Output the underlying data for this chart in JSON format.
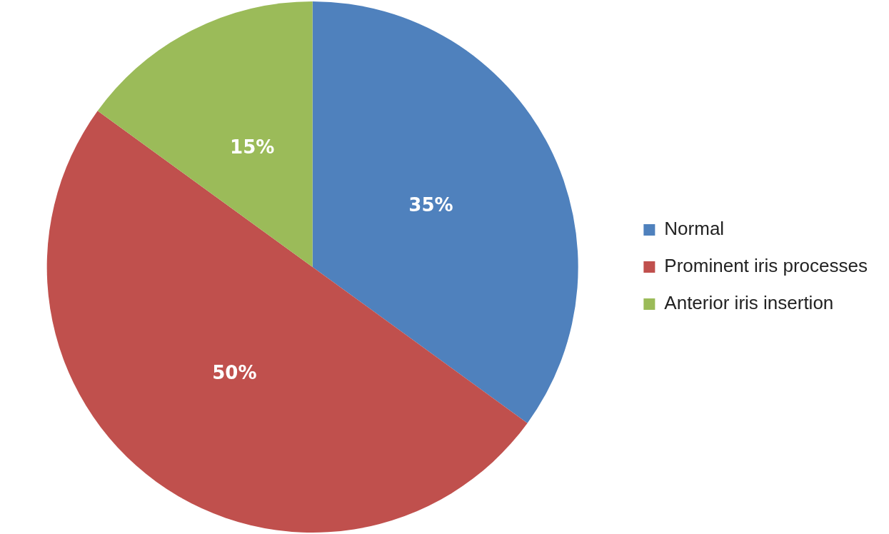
{
  "chart_data": {
    "type": "pie",
    "categories": [
      "Normal",
      "Prominent iris processes",
      "Anterior iris insertion"
    ],
    "values": [
      35,
      50,
      15
    ],
    "colors": [
      "#4f81bd",
      "#c0504d",
      "#9bbb59"
    ],
    "value_labels": [
      "35%",
      "50%",
      "15%"
    ],
    "legend": "right"
  }
}
